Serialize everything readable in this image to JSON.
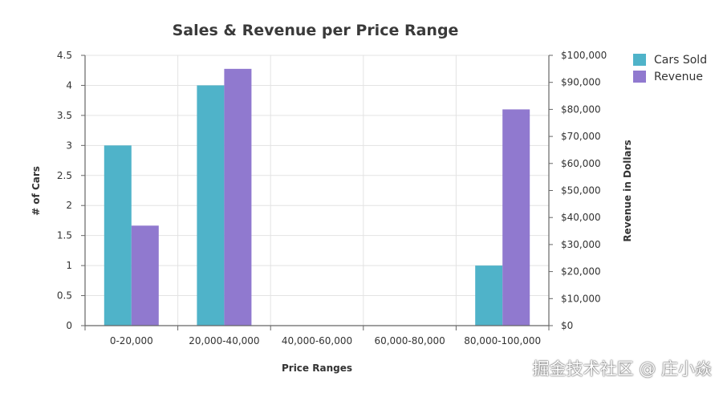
{
  "chart_data": {
    "type": "bar",
    "title": "Sales & Revenue per Price Range",
    "xlabel": "Price Ranges",
    "ylabel": "# of Cars",
    "y2label": "Revenue in Dollars",
    "categories": [
      "0-20,000",
      "20,000-40,000",
      "40,000-60,000",
      "60,000-80,000",
      "80,000-100,000"
    ],
    "series": [
      {
        "name": "Cars Sold",
        "axis": "left",
        "color": "#4fb3c9",
        "values": [
          3,
          4,
          0,
          0,
          1
        ]
      },
      {
        "name": "Revenue",
        "axis": "right",
        "color": "#9079cf",
        "values": [
          37000,
          95000,
          0,
          0,
          80000
        ]
      }
    ],
    "ylim": [
      0,
      4.5
    ],
    "y2lim": [
      0,
      100000
    ],
    "yticks": [
      "0",
      "0.5",
      "1",
      "1.5",
      "2",
      "2.5",
      "3",
      "3.5",
      "4",
      "4.5"
    ],
    "y2ticks": [
      "$0",
      "$10,000",
      "$20,000",
      "$30,000",
      "$40,000",
      "$50,000",
      "$60,000",
      "$70,000",
      "$80,000",
      "$90,000",
      "$100,000"
    ],
    "grid": true,
    "legend": "top-right"
  },
  "watermark": "掘金技术社区 @ 庄小焱"
}
